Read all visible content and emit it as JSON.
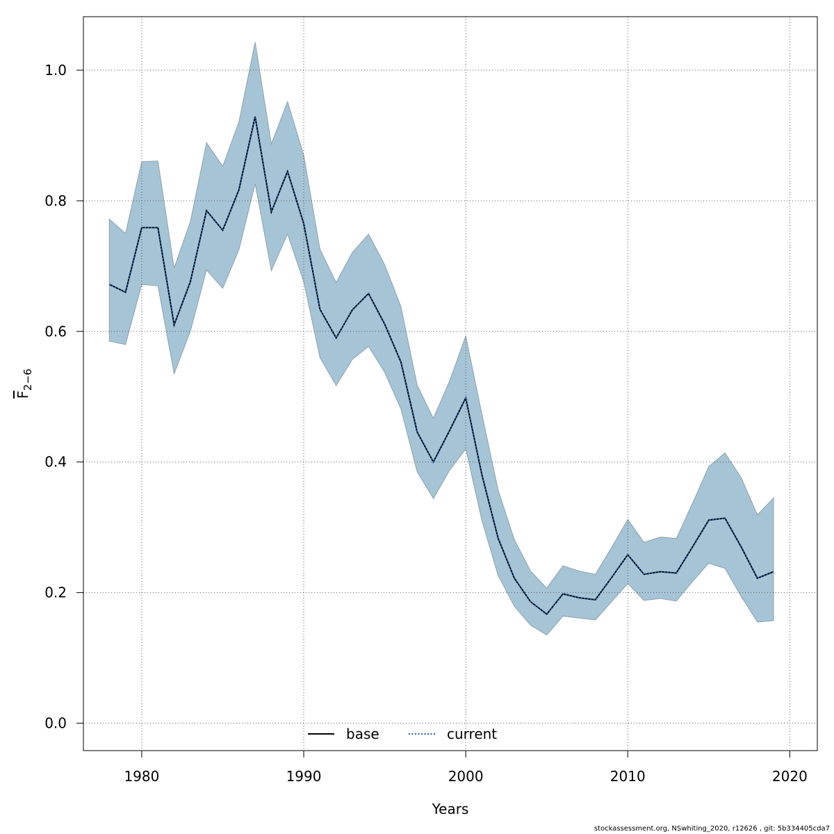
{
  "chart_data": {
    "type": "line",
    "xlabel": "Years",
    "ylabel_main": "F",
    "ylabel_sub": "2−6",
    "xlim": [
      1976.4,
      2021.7
    ],
    "ylim": [
      -0.042,
      1.082
    ],
    "x_ticks": [
      1980,
      1990,
      2000,
      2010,
      2020
    ],
    "y_ticks": [
      0.0,
      0.2,
      0.4,
      0.6,
      0.8,
      1.0
    ],
    "x_tick_labels": [
      "1980",
      "1990",
      "2000",
      "2010",
      "2020"
    ],
    "y_tick_labels": [
      "0.0",
      "0.2",
      "0.4",
      "0.6",
      "0.8",
      "1.0"
    ],
    "grid": true,
    "legend_position": "bottom-center",
    "x": [
      1978,
      1979,
      1980,
      1981,
      1982,
      1983,
      1984,
      1985,
      1986,
      1987,
      1988,
      1989,
      1990,
      1991,
      1992,
      1993,
      1994,
      1995,
      1996,
      1997,
      1998,
      1999,
      2000,
      2001,
      2002,
      2003,
      2004,
      2005,
      2006,
      2007,
      2008,
      2009,
      2010,
      2011,
      2012,
      2013,
      2014,
      2015,
      2016,
      2017,
      2018,
      2019
    ],
    "series": [
      {
        "name": "base",
        "line_style": "solid",
        "color": "#000000",
        "values": [
          0.672,
          0.66,
          0.759,
          0.759,
          0.61,
          0.676,
          0.785,
          0.755,
          0.817,
          0.929,
          0.783,
          0.845,
          0.765,
          0.634,
          0.59,
          0.633,
          0.658,
          0.611,
          0.553,
          0.446,
          0.4,
          0.448,
          0.498,
          0.38,
          0.283,
          0.222,
          0.186,
          0.167,
          0.198,
          0.192,
          0.189,
          0.223,
          0.258,
          0.228,
          0.232,
          0.23,
          0.27,
          0.311,
          0.314,
          0.27,
          0.222,
          0.232
        ]
      },
      {
        "name": "current",
        "line_style": "dotted",
        "color": "#1f5fa8",
        "values": [
          0.672,
          0.66,
          0.759,
          0.759,
          0.61,
          0.676,
          0.785,
          0.755,
          0.817,
          0.929,
          0.783,
          0.845,
          0.765,
          0.634,
          0.59,
          0.633,
          0.658,
          0.611,
          0.553,
          0.446,
          0.4,
          0.448,
          0.498,
          0.38,
          0.283,
          0.222,
          0.186,
          0.167,
          0.198,
          0.192,
          0.189,
          0.223,
          0.258,
          0.228,
          0.232,
          0.23,
          0.27,
          0.311,
          0.314,
          0.27,
          0.222,
          0.232
        ]
      }
    ],
    "confidence_band": {
      "color": "#a5c4d6",
      "upper": [
        0.772,
        0.75,
        0.86,
        0.861,
        0.697,
        0.768,
        0.889,
        0.853,
        0.921,
        1.043,
        0.887,
        0.952,
        0.87,
        0.726,
        0.675,
        0.721,
        0.749,
        0.702,
        0.638,
        0.518,
        0.467,
        0.524,
        0.593,
        0.473,
        0.357,
        0.281,
        0.233,
        0.207,
        0.241,
        0.233,
        0.228,
        0.269,
        0.312,
        0.277,
        0.285,
        0.283,
        0.337,
        0.393,
        0.414,
        0.376,
        0.319,
        0.345
      ],
      "lower": [
        0.585,
        0.58,
        0.672,
        0.67,
        0.535,
        0.6,
        0.694,
        0.666,
        0.725,
        0.826,
        0.693,
        0.749,
        0.676,
        0.56,
        0.517,
        0.557,
        0.577,
        0.537,
        0.481,
        0.385,
        0.344,
        0.387,
        0.42,
        0.31,
        0.226,
        0.179,
        0.15,
        0.135,
        0.164,
        0.161,
        0.158,
        0.186,
        0.214,
        0.188,
        0.191,
        0.187,
        0.217,
        0.245,
        0.237,
        0.194,
        0.155,
        0.157
      ]
    }
  },
  "footer": "stockassessment.org, NSwhiting_2020, r12626 , git: 5b334405cda7"
}
